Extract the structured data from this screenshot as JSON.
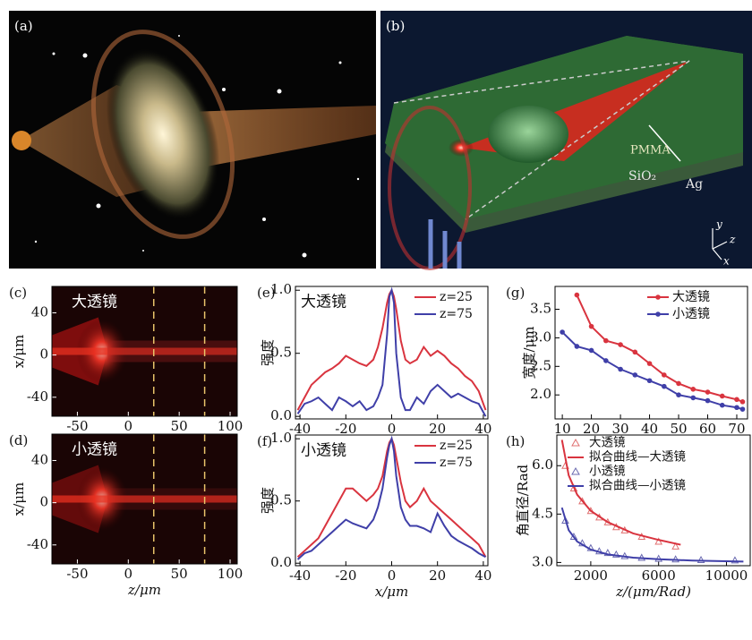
{
  "figure_panels": [
    {
      "label": "(a)"
    },
    {
      "label": "(b)",
      "annotations": [
        "PMMA",
        "SiO₂",
        "Ag"
      ],
      "axes": [
        "y",
        "z",
        "x"
      ]
    }
  ],
  "chart_data": [
    {
      "type": "image",
      "label": "(c)",
      "title": "大透镜",
      "xlabel": "z/μm",
      "ylabel": "x/μm",
      "xlim": [
        -75,
        107
      ],
      "ylim": [
        -58,
        65
      ],
      "xticks": [
        -50,
        0,
        50,
        100
      ],
      "yticks": [
        40,
        0,
        -40
      ],
      "vlines": [
        25,
        75
      ],
      "vline_color": "#e8c36a"
    },
    {
      "type": "image",
      "label": "(d)",
      "title": "小透镜",
      "xlabel": "z/μm",
      "ylabel": "x/μm",
      "xlim": [
        -75,
        107
      ],
      "ylim": [
        -58,
        65
      ],
      "xticks": [
        -50,
        0,
        50,
        100
      ],
      "yticks": [
        40,
        0,
        -40
      ],
      "vlines": [
        25,
        75
      ],
      "vline_color": "#e8c36a"
    },
    {
      "type": "line",
      "label": "(e)",
      "title": "大透镜",
      "xlabel": "x/μm",
      "ylabel": "强度",
      "xlim": [
        -42,
        42
      ],
      "ylim": [
        -0.02,
        1.03
      ],
      "xticks": [
        -40,
        -20,
        0,
        20,
        40
      ],
      "yticks": [
        {
          "value": 0,
          "label": "0.0"
        },
        {
          "value": 0.5,
          "label": "0.5"
        },
        {
          "value": 1,
          "label": "1.0"
        }
      ],
      "x": [
        -41,
        -38,
        -35,
        -32,
        -29,
        -26,
        -23,
        -20,
        -17,
        -14,
        -11,
        -8,
        -6,
        -4,
        -2,
        -1,
        0,
        1,
        2,
        4,
        6,
        8,
        11,
        14,
        17,
        20,
        23,
        26,
        29,
        32,
        35,
        38,
        41
      ],
      "series": [
        {
          "name": "z=25",
          "color": "#d9343f",
          "values": [
            0.05,
            0.15,
            0.25,
            0.3,
            0.35,
            0.38,
            0.42,
            0.48,
            0.45,
            0.42,
            0.4,
            0.45,
            0.55,
            0.7,
            0.9,
            0.97,
            1.0,
            0.95,
            0.85,
            0.6,
            0.45,
            0.42,
            0.45,
            0.55,
            0.48,
            0.52,
            0.48,
            0.42,
            0.38,
            0.32,
            0.28,
            0.2,
            0.05
          ]
        },
        {
          "name": "z=75",
          "color": "#3f3fa8",
          "values": [
            0.02,
            0.1,
            0.12,
            0.15,
            0.1,
            0.05,
            0.15,
            0.12,
            0.08,
            0.12,
            0.05,
            0.08,
            0.15,
            0.25,
            0.65,
            0.95,
            1.0,
            0.9,
            0.5,
            0.15,
            0.05,
            0.05,
            0.15,
            0.1,
            0.2,
            0.25,
            0.2,
            0.15,
            0.18,
            0.15,
            0.12,
            0.1,
            0.0
          ]
        }
      ]
    },
    {
      "type": "line",
      "label": "(f)",
      "title": "小透镜",
      "xlabel": "x/μm",
      "ylabel": "强度",
      "xlim": [
        -42,
        42
      ],
      "ylim": [
        -0.02,
        1.03
      ],
      "xticks": [
        -40,
        -20,
        0,
        20,
        40
      ],
      "yticks": [
        {
          "value": 0,
          "label": "0.0"
        },
        {
          "value": 0.5,
          "label": "0.5"
        },
        {
          "value": 1,
          "label": "1.0"
        }
      ],
      "x": [
        -41,
        -38,
        -35,
        -32,
        -29,
        -26,
        -23,
        -20,
        -17,
        -14,
        -11,
        -8,
        -6,
        -4,
        -2,
        -1,
        0,
        1,
        2,
        4,
        6,
        8,
        11,
        14,
        17,
        20,
        23,
        26,
        29,
        32,
        35,
        38,
        41
      ],
      "series": [
        {
          "name": "z=25",
          "color": "#d9343f",
          "values": [
            0.05,
            0.1,
            0.15,
            0.2,
            0.3,
            0.4,
            0.5,
            0.6,
            0.6,
            0.55,
            0.5,
            0.55,
            0.6,
            0.7,
            0.9,
            0.97,
            1.0,
            0.95,
            0.85,
            0.65,
            0.5,
            0.45,
            0.5,
            0.6,
            0.5,
            0.45,
            0.4,
            0.35,
            0.3,
            0.25,
            0.2,
            0.15,
            0.05
          ]
        },
        {
          "name": "z=75",
          "color": "#3f3fa8",
          "values": [
            0.03,
            0.08,
            0.1,
            0.15,
            0.2,
            0.25,
            0.3,
            0.35,
            0.32,
            0.3,
            0.28,
            0.35,
            0.45,
            0.6,
            0.85,
            0.95,
            1.0,
            0.9,
            0.7,
            0.45,
            0.35,
            0.3,
            0.3,
            0.28,
            0.25,
            0.4,
            0.3,
            0.22,
            0.18,
            0.15,
            0.12,
            0.08,
            0.05
          ]
        }
      ]
    },
    {
      "type": "line",
      "markers": true,
      "label": "(g)",
      "xlabel": "z/μm",
      "ylabel": "宽度/μm",
      "xlim": [
        7.5,
        73.7
      ],
      "ylim": [
        1.58,
        3.9
      ],
      "xticks": [
        10,
        20,
        30,
        40,
        50,
        60,
        70
      ],
      "yticks": [
        {
          "value": 2,
          "label": "2.0"
        },
        {
          "value": 2.5,
          "label": "2.5"
        },
        {
          "value": 3,
          "label": "3.0"
        },
        {
          "value": 3.5,
          "label": "3.5"
        }
      ],
      "x": [
        10,
        15,
        20,
        25,
        30,
        35,
        40,
        45,
        50,
        55,
        60,
        65,
        70,
        72
      ],
      "series": [
        {
          "name": "大透镜",
          "color": "#d9343f",
          "values": [
            null,
            3.75,
            3.2,
            2.95,
            2.88,
            2.75,
            2.55,
            2.35,
            2.2,
            2.1,
            2.05,
            1.98,
            1.92,
            1.88
          ]
        },
        {
          "name": "小透镜",
          "color": "#3f3fa8",
          "values": [
            3.1,
            2.85,
            2.78,
            2.6,
            2.45,
            2.35,
            2.25,
            2.15,
            2.0,
            1.95,
            1.9,
            1.82,
            1.78,
            1.75
          ]
        }
      ]
    },
    {
      "type": "scatter",
      "label": "(h)",
      "xlabel": "z/(μm/Rad)",
      "ylabel": "角直径/Rad",
      "xlim": [
        0,
        11400
      ],
      "ylim": [
        2.9,
        6.95
      ],
      "xticks": [
        2000,
        6000,
        10000
      ],
      "yticks": [
        {
          "value": 3,
          "label": "3.0"
        },
        {
          "value": 4.5,
          "label": "4.5"
        },
        {
          "value": 6,
          "label": "6.0"
        }
      ],
      "series": [
        {
          "name": "大透镜",
          "style": "triangle",
          "color": "#e07070",
          "x": [
            500,
            1000,
            1500,
            2000,
            2500,
            3000,
            3500,
            4000,
            5000,
            6000,
            7000
          ],
          "values": [
            6.0,
            5.3,
            4.9,
            4.6,
            4.4,
            4.25,
            4.1,
            4.0,
            3.8,
            3.65,
            3.5
          ]
        },
        {
          "name": "拟合曲线—大透镜",
          "style": "line",
          "color": "#d9343f",
          "x": [
            300,
            700,
            1200,
            2000,
            3000,
            4500,
            6000,
            7300
          ],
          "values": [
            6.8,
            5.7,
            5.1,
            4.6,
            4.25,
            3.9,
            3.7,
            3.55
          ]
        },
        {
          "name": "小透镜",
          "style": "triangle",
          "color": "#6a6ab0",
          "x": [
            500,
            1000,
            1500,
            2000,
            2500,
            3000,
            3500,
            4000,
            5000,
            6000,
            7000,
            8500,
            10500
          ],
          "values": [
            4.3,
            3.8,
            3.6,
            3.45,
            3.35,
            3.3,
            3.25,
            3.2,
            3.15,
            3.12,
            3.1,
            3.08,
            3.07
          ]
        },
        {
          "name": "拟合曲线—小透镜",
          "style": "line",
          "color": "#3f3fa8",
          "x": [
            300,
            700,
            1200,
            2000,
            3000,
            4500,
            6000,
            8000,
            11000
          ],
          "values": [
            4.7,
            4.0,
            3.65,
            3.4,
            3.25,
            3.15,
            3.1,
            3.06,
            3.03
          ]
        }
      ]
    }
  ]
}
